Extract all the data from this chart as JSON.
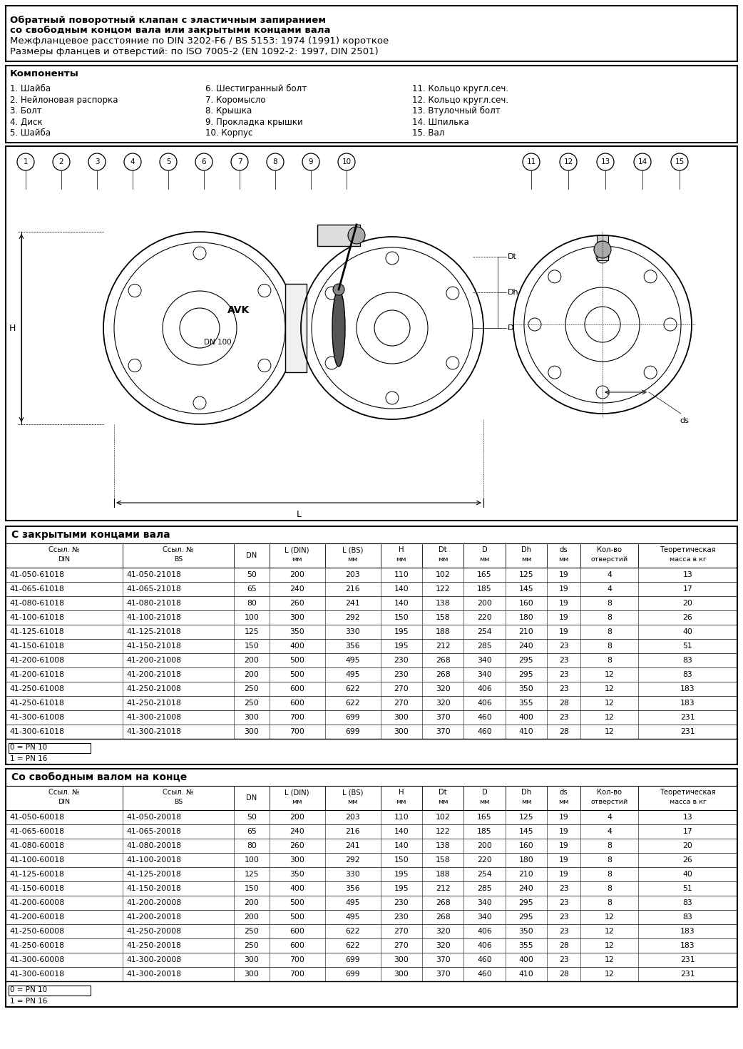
{
  "title_lines": [
    "Обратный поворотный клапан с эластичным запиранием",
    "со свободным концом вала или закрытыми концами вала",
    "Межфланцевое расстояние по DIN 3202-F6 / BS 5153: 1974 (1991) короткое",
    "Размеры фланцев и отверстий: по ISO 7005-2 (EN 1092-2: 1997, DIN 2501)"
  ],
  "components_title": "Компоненты",
  "components_col1": [
    "1. Шайба",
    "2. Нейлоновая распорка",
    "3. Болт",
    "4. Диск",
    "5. Шайба"
  ],
  "components_col2": [
    "6. Шестигранный болт",
    "7. Коромысло",
    "8. Крышка",
    "9. Прокладка крышки",
    "10. Корпус"
  ],
  "components_col3": [
    "11. Кольцо кругл.сеч.",
    "12. Кольцо кругл.сеч.",
    "13. Втулочный болт",
    "14. Шпилька",
    "15. Вал"
  ],
  "table1_title": "С закрытыми концами вала",
  "table2_title": "Со свободным валом на конце",
  "col_headers": [
    "Ссыл. №\nDIN",
    "Ссыл. №\nBS",
    "DN",
    "L (DIN)\nмм",
    "L (BS)\nмм",
    "H\nмм",
    "Dt\nмм",
    "D\nмм",
    "Dh\nмм",
    "ds\nмм",
    "Кол-во\nотверстий",
    "Теоретическая\nмасса в кг"
  ],
  "table1_rows": [
    [
      "41-050-61018",
      "41-050-21018",
      "50",
      "200",
      "203",
      "110",
      "102",
      "165",
      "125",
      "19",
      "4",
      "13"
    ],
    [
      "41-065-61018",
      "41-065-21018",
      "65",
      "240",
      "216",
      "140",
      "122",
      "185",
      "145",
      "19",
      "4",
      "17"
    ],
    [
      "41-080-61018",
      "41-080-21018",
      "80",
      "260",
      "241",
      "140",
      "138",
      "200",
      "160",
      "19",
      "8",
      "20"
    ],
    [
      "41-100-61018",
      "41-100-21018",
      "100",
      "300",
      "292",
      "150",
      "158",
      "220",
      "180",
      "19",
      "8",
      "26"
    ],
    [
      "41-125-61018",
      "41-125-21018",
      "125",
      "350",
      "330",
      "195",
      "188",
      "254",
      "210",
      "19",
      "8",
      "40"
    ],
    [
      "41-150-61018",
      "41-150-21018",
      "150",
      "400",
      "356",
      "195",
      "212",
      "285",
      "240",
      "23",
      "8",
      "51"
    ],
    [
      "41-200-61008",
      "41-200-21008",
      "200",
      "500",
      "495",
      "230",
      "268",
      "340",
      "295",
      "23",
      "8",
      "83"
    ],
    [
      "41-200-61018",
      "41-200-21018",
      "200",
      "500",
      "495",
      "230",
      "268",
      "340",
      "295",
      "23",
      "12",
      "83"
    ],
    [
      "41-250-61008",
      "41-250-21008",
      "250",
      "600",
      "622",
      "270",
      "320",
      "406",
      "350",
      "23",
      "12",
      "183"
    ],
    [
      "41-250-61018",
      "41-250-21018",
      "250",
      "600",
      "622",
      "270",
      "320",
      "406",
      "355",
      "28",
      "12",
      "183"
    ],
    [
      "41-300-61008",
      "41-300-21008",
      "300",
      "700",
      "699",
      "300",
      "370",
      "460",
      "400",
      "23",
      "12",
      "231"
    ],
    [
      "41-300-61018",
      "41-300-21018",
      "300",
      "700",
      "699",
      "300",
      "370",
      "460",
      "410",
      "28",
      "12",
      "231"
    ]
  ],
  "table2_rows": [
    [
      "41-050-60018",
      "41-050-20018",
      "50",
      "200",
      "203",
      "110",
      "102",
      "165",
      "125",
      "19",
      "4",
      "13"
    ],
    [
      "41-065-60018",
      "41-065-20018",
      "65",
      "240",
      "216",
      "140",
      "122",
      "185",
      "145",
      "19",
      "4",
      "17"
    ],
    [
      "41-080-60018",
      "41-080-20018",
      "80",
      "260",
      "241",
      "140",
      "138",
      "200",
      "160",
      "19",
      "8",
      "20"
    ],
    [
      "41-100-60018",
      "41-100-20018",
      "100",
      "300",
      "292",
      "150",
      "158",
      "220",
      "180",
      "19",
      "8",
      "26"
    ],
    [
      "41-125-60018",
      "41-125-20018",
      "125",
      "350",
      "330",
      "195",
      "188",
      "254",
      "210",
      "19",
      "8",
      "40"
    ],
    [
      "41-150-60018",
      "41-150-20018",
      "150",
      "400",
      "356",
      "195",
      "212",
      "285",
      "240",
      "23",
      "8",
      "51"
    ],
    [
      "41-200-60008",
      "41-200-20008",
      "200",
      "500",
      "495",
      "230",
      "268",
      "340",
      "295",
      "23",
      "8",
      "83"
    ],
    [
      "41-200-60018",
      "41-200-20018",
      "200",
      "500",
      "495",
      "230",
      "268",
      "340",
      "295",
      "23",
      "12",
      "83"
    ],
    [
      "41-250-60008",
      "41-250-20008",
      "250",
      "600",
      "622",
      "270",
      "320",
      "406",
      "350",
      "23",
      "12",
      "183"
    ],
    [
      "41-250-60018",
      "41-250-20018",
      "250",
      "600",
      "622",
      "270",
      "320",
      "406",
      "355",
      "28",
      "12",
      "183"
    ],
    [
      "41-300-60008",
      "41-300-20008",
      "300",
      "700",
      "699",
      "300",
      "370",
      "460",
      "400",
      "23",
      "12",
      "231"
    ],
    [
      "41-300-60018",
      "41-300-20018",
      "300",
      "700",
      "699",
      "300",
      "370",
      "460",
      "410",
      "28",
      "12",
      "231"
    ]
  ],
  "footnote": "0 = PN 10\n1 = PN 16",
  "bg_color": "#ffffff",
  "border_color": "#000000",
  "text_color": "#000000"
}
